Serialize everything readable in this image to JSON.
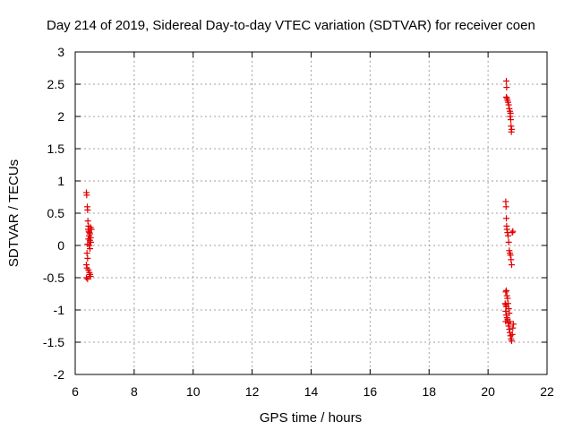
{
  "chart_data": {
    "type": "scatter",
    "title": "Day 214 of 2019, Sidereal Day-to-day VTEC variation (SDTVAR) for receiver coen",
    "xlabel": "GPS time / hours",
    "ylabel": "SDTVAR / TECUs",
    "xlim": [
      6,
      22
    ],
    "ylim": [
      -2,
      3
    ],
    "xticks": [
      6,
      8,
      10,
      12,
      14,
      16,
      18,
      20,
      22
    ],
    "yticks": [
      -2,
      -1.5,
      -1,
      -0.5,
      0,
      0.5,
      1,
      1.5,
      2,
      2.5,
      3
    ],
    "grid": true,
    "marker": "plus",
    "color": "#e00000",
    "series": [
      {
        "points": [
          [
            6.38,
            0.82
          ],
          [
            6.39,
            0.78
          ],
          [
            6.41,
            0.6
          ],
          [
            6.42,
            0.55
          ],
          [
            6.43,
            0.38
          ],
          [
            6.45,
            0.3
          ],
          [
            6.44,
            0.25
          ],
          [
            6.46,
            0.22
          ],
          [
            6.48,
            0.2
          ],
          [
            6.5,
            0.18
          ],
          [
            6.47,
            0.15
          ],
          [
            6.52,
            0.12
          ],
          [
            6.45,
            0.1
          ],
          [
            6.5,
            0.08
          ],
          [
            6.53,
            0.05
          ],
          [
            6.42,
            0.02
          ],
          [
            6.48,
            0.0
          ],
          [
            6.5,
            -0.05
          ],
          [
            6.4,
            -0.12
          ],
          [
            6.42,
            -0.2
          ],
          [
            6.38,
            -0.3
          ],
          [
            6.4,
            -0.35
          ],
          [
            6.45,
            -0.38
          ],
          [
            6.48,
            -0.42
          ],
          [
            6.5,
            -0.45
          ],
          [
            6.52,
            -0.48
          ],
          [
            6.38,
            -0.5
          ],
          [
            6.42,
            -0.52
          ],
          [
            6.55,
            0.25
          ],
          [
            6.52,
            0.28
          ],
          [
            20.62,
            2.55
          ],
          [
            20.63,
            2.45
          ],
          [
            20.62,
            2.3
          ],
          [
            20.64,
            2.28
          ],
          [
            20.66,
            2.25
          ],
          [
            20.68,
            2.22
          ],
          [
            20.7,
            2.18
          ],
          [
            20.72,
            2.12
          ],
          [
            20.74,
            2.08
          ],
          [
            20.76,
            2.05
          ],
          [
            20.75,
            2.0
          ],
          [
            20.77,
            1.95
          ],
          [
            20.78,
            1.85
          ],
          [
            20.8,
            1.8
          ],
          [
            20.79,
            1.76
          ],
          [
            20.6,
            0.68
          ],
          [
            20.61,
            0.6
          ],
          [
            20.62,
            0.42
          ],
          [
            20.63,
            0.3
          ],
          [
            20.64,
            0.25
          ],
          [
            20.66,
            0.2
          ],
          [
            20.68,
            0.15
          ],
          [
            20.7,
            0.05
          ],
          [
            20.72,
            -0.08
          ],
          [
            20.74,
            -0.12
          ],
          [
            20.76,
            -0.15
          ],
          [
            20.78,
            -0.22
          ],
          [
            20.8,
            -0.3
          ],
          [
            20.82,
            0.2
          ],
          [
            20.84,
            0.22
          ],
          [
            20.6,
            -0.72
          ],
          [
            20.62,
            -0.7
          ],
          [
            20.64,
            -0.78
          ],
          [
            20.66,
            -0.82
          ],
          [
            20.58,
            -0.9
          ],
          [
            20.6,
            -0.92
          ],
          [
            20.62,
            -0.95
          ],
          [
            20.68,
            -0.9
          ],
          [
            20.7,
            -0.98
          ],
          [
            20.6,
            -1.02
          ],
          [
            20.62,
            -1.08
          ],
          [
            20.64,
            -1.12
          ],
          [
            20.66,
            -1.15
          ],
          [
            20.6,
            -1.18
          ],
          [
            20.68,
            -1.2
          ],
          [
            20.7,
            -1.25
          ],
          [
            20.72,
            -1.3
          ],
          [
            20.74,
            -1.35
          ],
          [
            20.76,
            -1.4
          ],
          [
            20.78,
            -1.45
          ],
          [
            20.8,
            -1.48
          ],
          [
            20.82,
            -1.38
          ],
          [
            20.84,
            -1.28
          ],
          [
            20.86,
            -1.22
          ],
          [
            20.74,
            -1.18
          ],
          [
            20.72,
            -1.05
          ]
        ]
      }
    ]
  }
}
